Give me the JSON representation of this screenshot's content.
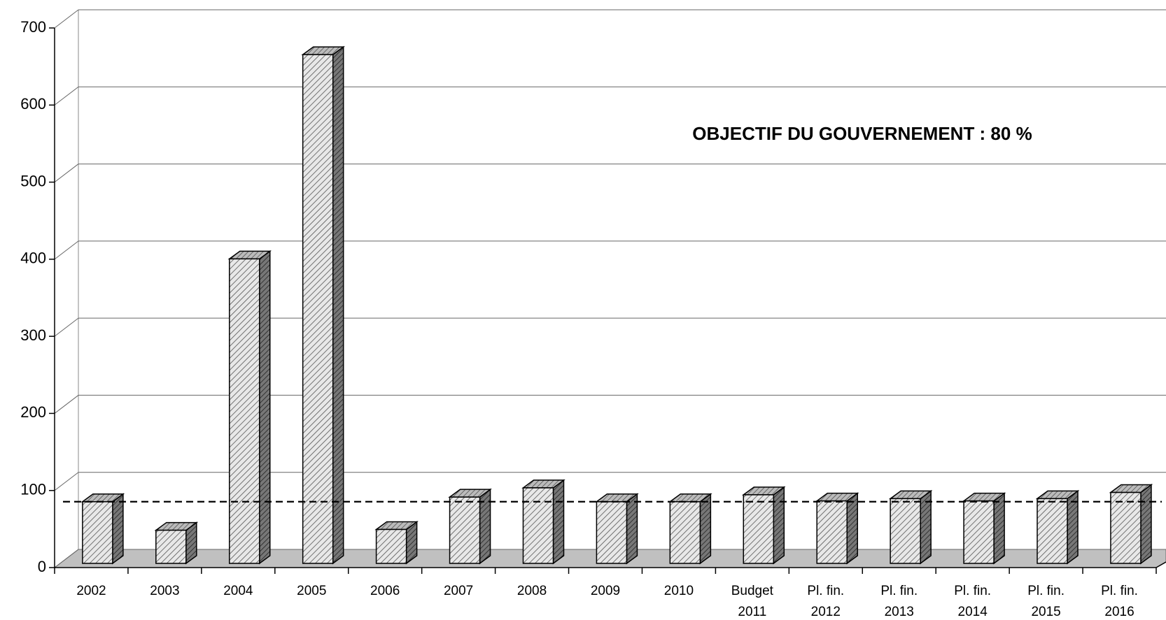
{
  "chart_data": {
    "type": "bar3d",
    "categories": [
      "2002",
      "2003",
      "2004",
      "2005",
      "2006",
      "2007",
      "2008",
      "2009",
      "2010",
      "Budget 2011",
      "Pl. fin. 2012",
      "Pl. fin. 2013",
      "Pl. fin. 2014",
      "Pl. fin. 2015",
      "Pl. fin. 2016"
    ],
    "values": [
      80,
      43,
      395,
      660,
      44,
      86,
      98,
      80,
      80,
      89,
      81,
      84,
      81,
      84,
      92
    ],
    "color": "#d9d9d9",
    "ylim": [
      0,
      700
    ],
    "yticks": [
      0,
      100,
      200,
      300,
      400,
      500,
      600,
      700
    ],
    "grid": true,
    "target": 80,
    "annotation": "OBJECTIF DU GOUVERNEMENT  :  80 %"
  }
}
